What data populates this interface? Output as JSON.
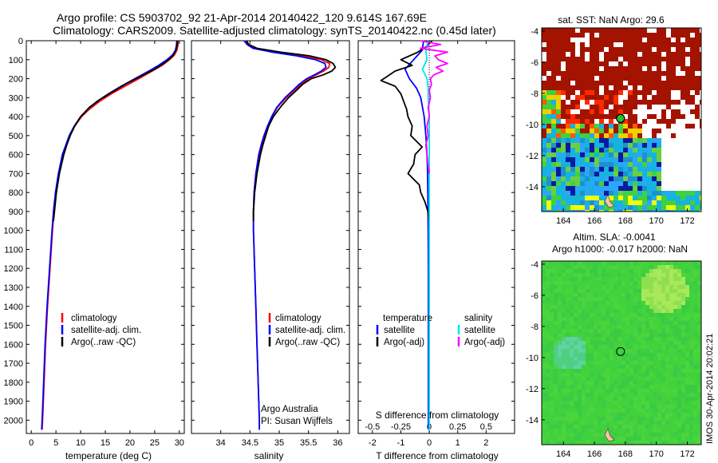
{
  "title_line1": "Argo profile: CS 5903702_92 21-Apr-2014 20140422_120 9.614S 167.69E",
  "title_line2": "Climatology: CARS2009. Satellite-adjusted climatology: synTS_20140422.nc (0.45d later)",
  "colors": {
    "clim": "#ff0000",
    "sat": "#0000ff",
    "argo": "#000000",
    "sal_sat": "#00e5ee",
    "sal_argo": "#ff00ff",
    "sst_hot": "#a31300",
    "map_green": "#3fd13f"
  },
  "depth_ticks": [
    "0",
    "100",
    "200",
    "300",
    "400",
    "500",
    "600",
    "700",
    "800",
    "900",
    "1000",
    "1100",
    "1200",
    "1300",
    "1400",
    "1500",
    "1600",
    "1700",
    "1800",
    "1900",
    "2000"
  ],
  "legend": {
    "climatology": "climatology",
    "satellite": "satellite-adj. clim.",
    "argo": "Argo(..raw -QC)"
  },
  "info": {
    "line1": "Argo Australia",
    "line2": "PI: Susan Wijffels"
  },
  "diff_legend": {
    "temperature": "temperature",
    "salinity": "salinity",
    "t_sat": "satellite",
    "t_argo": "Argo(-adj)",
    "s_sat": "satellite",
    "s_argo": "Argo(-adj)"
  },
  "maps": {
    "sst_title": "sat. SST: NaN Argo: 29.6",
    "sla_title1": "Altim. SLA: -0.0041",
    "sla_title2": "Argo h1000: -0.017 h2000: NaN",
    "lat_ticks": [
      "-4",
      "-6",
      "-8",
      "-10",
      "-12",
      "-14"
    ],
    "lon_ticks": [
      "164",
      "166",
      "168",
      "170",
      "172"
    ],
    "float_lat": -9.614,
    "float_lon": 167.69
  },
  "stamp": "IMOS 30-Apr-2014 20:02:21",
  "chart_data": [
    {
      "type": "line",
      "panel": "temperature",
      "xlabel": "temperature (deg C)",
      "xlim": [
        -1,
        31
      ],
      "ylim": [
        2070,
        0
      ],
      "xticks": [
        0,
        5,
        10,
        15,
        20,
        25,
        30
      ],
      "xtick_labels": [
        "0",
        "5",
        "10",
        "15",
        "20",
        "25",
        "30"
      ],
      "series": [
        {
          "name": "climatology",
          "depth": [
            0,
            25,
            50,
            75,
            100,
            130,
            160,
            200,
            240,
            280,
            320,
            360,
            400,
            450,
            500,
            600,
            700,
            800,
            900,
            1000,
            1200,
            1400,
            1600,
            1800,
            2000,
            2050
          ],
          "values": [
            29.7,
            29.7,
            29.5,
            29.0,
            28.0,
            26.5,
            24.5,
            21.8,
            19.0,
            16.2,
            13.8,
            11.8,
            10.2,
            8.8,
            7.8,
            6.4,
            5.6,
            5.0,
            4.6,
            4.3,
            3.8,
            3.3,
            2.9,
            2.6,
            2.3,
            2.2
          ]
        },
        {
          "name": "satellite-adj. clim.",
          "depth": [
            0,
            25,
            50,
            75,
            100,
            130,
            160,
            200,
            240,
            280,
            320,
            360,
            400,
            450,
            500,
            600,
            700,
            800,
            900,
            1000,
            1200,
            1400,
            1600,
            1800,
            2000,
            2050
          ],
          "values": [
            29.5,
            29.4,
            29.2,
            28.6,
            27.5,
            25.8,
            23.8,
            21.0,
            18.2,
            15.6,
            13.3,
            11.5,
            10.0,
            8.7,
            7.7,
            6.3,
            5.5,
            4.9,
            4.5,
            4.2,
            3.7,
            3.2,
            2.8,
            2.5,
            2.2,
            2.1
          ]
        },
        {
          "name": "Argo(..raw -QC)",
          "depth": [
            0,
            20,
            50,
            80,
            110,
            150,
            190,
            230,
            270,
            310,
            350,
            400,
            450,
            500,
            550,
            600,
            700,
            800,
            900,
            950
          ],
          "values": [
            29.6,
            29.6,
            29.3,
            28.7,
            27.4,
            25.0,
            22.0,
            19.0,
            16.4,
            13.9,
            11.8,
            10.0,
            8.8,
            7.9,
            7.2,
            6.6,
            5.7,
            5.1,
            4.7,
            4.5
          ]
        }
      ]
    },
    {
      "type": "line",
      "panel": "salinity",
      "xlabel": "salinity",
      "xlim": [
        33.5,
        36.2
      ],
      "ylim": [
        2070,
        0
      ],
      "xticks": [
        34,
        34.5,
        35,
        35.5,
        36
      ],
      "xtick_labels": [
        "34",
        "34.5",
        "35",
        "35.5",
        "36"
      ],
      "series": [
        {
          "name": "climatology",
          "depth": [
            0,
            20,
            40,
            60,
            80,
            100,
            120,
            140,
            160,
            180,
            200,
            230,
            260,
            300,
            350,
            400,
            450,
            500,
            550,
            600,
            700,
            800,
            900,
            1000,
            1200,
            1400,
            1600,
            1800,
            2000,
            2050
          ],
          "values": [
            34.42,
            34.47,
            34.6,
            34.95,
            35.4,
            35.72,
            35.86,
            35.85,
            35.76,
            35.63,
            35.5,
            35.37,
            35.26,
            35.12,
            34.97,
            34.88,
            34.81,
            34.75,
            34.7,
            34.66,
            34.6,
            34.57,
            34.56,
            34.56,
            34.58,
            34.6,
            34.62,
            34.64,
            34.66,
            34.66
          ]
        },
        {
          "name": "satellite-adj. clim.",
          "depth": [
            0,
            20,
            40,
            60,
            80,
            100,
            120,
            140,
            160,
            180,
            200,
            230,
            260,
            300,
            350,
            400,
            450,
            500,
            550,
            600,
            700,
            800,
            900,
            1000,
            1200,
            1400,
            1600,
            1800,
            2000,
            2050
          ],
          "values": [
            34.4,
            34.45,
            34.55,
            34.88,
            35.3,
            35.62,
            35.78,
            35.8,
            35.72,
            35.6,
            35.47,
            35.34,
            35.24,
            35.1,
            34.96,
            34.87,
            34.8,
            34.74,
            34.69,
            34.65,
            34.6,
            34.57,
            34.56,
            34.56,
            34.58,
            34.6,
            34.62,
            34.64,
            34.66,
            34.66
          ]
        },
        {
          "name": "Argo(..raw -QC)",
          "depth": [
            0,
            20,
            40,
            60,
            80,
            100,
            120,
            140,
            160,
            180,
            200,
            230,
            260,
            300,
            350,
            400,
            450,
            500,
            550,
            600,
            650,
            700,
            750,
            800,
            850,
            900,
            950
          ],
          "values": [
            34.44,
            34.48,
            34.62,
            35.02,
            35.52,
            35.8,
            35.92,
            35.96,
            35.9,
            35.75,
            35.55,
            35.4,
            35.3,
            35.16,
            35.02,
            34.9,
            34.82,
            34.77,
            34.72,
            34.68,
            34.65,
            34.62,
            34.6,
            34.58,
            34.57,
            34.56,
            34.56
          ]
        }
      ]
    },
    {
      "type": "line",
      "panel": "difference",
      "xlabel": "T difference from climatology",
      "xlabel_top": "S difference from climatology",
      "xlim": [
        -2.5,
        3
      ],
      "ylim": [
        2070,
        0
      ],
      "xticks": [
        -2,
        -1,
        0,
        1,
        2
      ],
      "xtick_labels": [
        "-2",
        "-1",
        "0",
        "1",
        "2"
      ],
      "sticks": [
        -0.5,
        -0.25,
        0,
        0.25,
        0.5
      ],
      "stick_labels": [
        "-0.5",
        "-0.25",
        "0",
        "0.25",
        "0.5"
      ],
      "s_scale": 4,
      "series": [
        {
          "name": "temperature satellite",
          "depth": [
            0,
            50,
            100,
            150,
            200,
            250,
            300,
            400,
            500,
            600,
            700,
            800,
            1000,
            1200,
            1400,
            1600,
            1800,
            2000,
            2050
          ],
          "values": [
            -0.2,
            -0.25,
            -0.55,
            -0.85,
            -0.7,
            -0.45,
            -0.3,
            -0.18,
            -0.12,
            -0.08,
            -0.06,
            -0.05,
            -0.04,
            -0.03,
            -0.03,
            -0.03,
            -0.03,
            -0.03,
            -0.03
          ]
        },
        {
          "name": "temperature Argo(-adj)",
          "depth": [
            0,
            30,
            60,
            100,
            130,
            160,
            190,
            210,
            240,
            280,
            320,
            360,
            400,
            450,
            500,
            560,
            600,
            650,
            700,
            760,
            800,
            850,
            900,
            950
          ],
          "values": [
            0.1,
            -0.1,
            -0.4,
            -1.0,
            -0.6,
            -1.2,
            -1.5,
            -1.7,
            -1.2,
            -1.0,
            -0.9,
            -0.8,
            -0.75,
            -0.6,
            -0.65,
            -0.25,
            -0.5,
            -0.55,
            -0.75,
            -0.35,
            -0.3,
            -0.15,
            -0.05,
            0.0
          ]
        },
        {
          "name": "salinity satellite",
          "depth": [
            0,
            50,
            100,
            150,
            200,
            250,
            300,
            400,
            500,
            600,
            800,
            1000,
            1400,
            2050
          ],
          "values": [
            -0.01,
            -0.03,
            -0.02,
            -0.06,
            -0.02,
            -0.01,
            -0.01,
            0.0,
            0.0,
            0.0,
            0.0,
            0.0,
            0.0,
            0.0
          ]
        },
        {
          "name": "salinity Argo(-adj)",
          "depth": [
            0,
            20,
            40,
            60,
            80,
            100,
            120,
            140,
            160,
            180,
            200,
            230,
            260,
            300,
            350,
            400,
            450,
            500,
            550,
            600,
            660,
            700
          ],
          "values": [
            -0.08,
            0.1,
            -0.08,
            0.16,
            0.05,
            0.08,
            0.16,
            0.06,
            0.12,
            0.04,
            0.01,
            0.02,
            0.0,
            0.01,
            -0.01,
            0.0,
            -0.02,
            -0.01,
            -0.03,
            -0.02,
            -0.01,
            0.0
          ]
        }
      ]
    }
  ]
}
